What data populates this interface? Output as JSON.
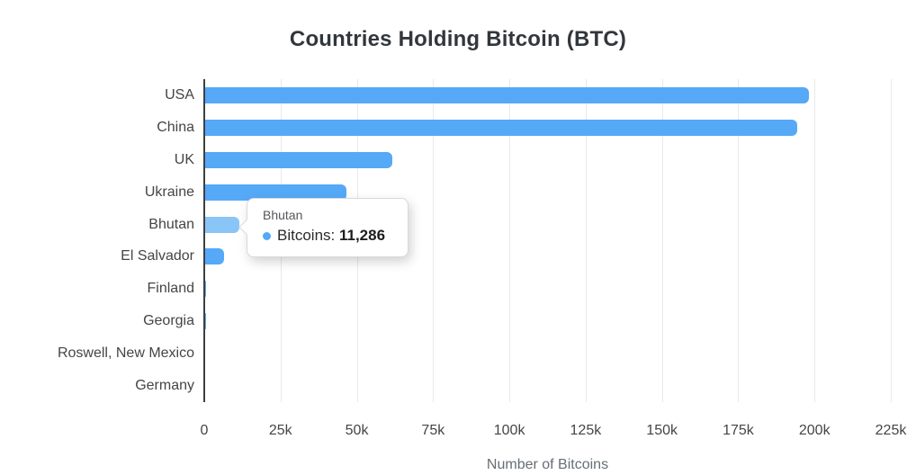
{
  "chart_data": {
    "type": "bar",
    "orientation": "horizontal",
    "title": "Countries Holding Bitcoin (BTC)",
    "xlabel": "Number of Bitcoins",
    "categories": [
      "USA",
      "China",
      "UK",
      "Ukraine",
      "Bhutan",
      "El Salvador",
      "Finland",
      "Georgia",
      "Roswell, New Mexico",
      "Germany"
    ],
    "values": [
      198012,
      194000,
      61245,
      46351,
      11286,
      6102,
      90,
      66,
      0,
      0
    ],
    "series_name": "Bitcoins",
    "x_ticks": [
      "0",
      "25k",
      "50k",
      "75k",
      "100k",
      "125k",
      "150k",
      "175k",
      "200k",
      "225k"
    ],
    "xlim": [
      0,
      225000
    ],
    "grid": true,
    "legend": "none",
    "highlighted_index": 4,
    "bar_color": "#55a9f7",
    "bar_color_hover": "#8ac5f7",
    "axis_line_color": "#3f3f3f",
    "grid_color": "#e9e9e9"
  },
  "tooltip": {
    "title": "Bhutan",
    "label": "Bitcoins:",
    "value": "11,286",
    "dot_color": "#55a9f7"
  }
}
